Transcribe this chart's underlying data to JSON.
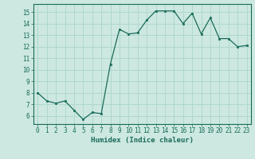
{
  "x": [
    0,
    1,
    2,
    3,
    4,
    5,
    6,
    7,
    8,
    9,
    10,
    11,
    12,
    13,
    14,
    15,
    16,
    17,
    18,
    19,
    20,
    21,
    22,
    23
  ],
  "y": [
    8.0,
    7.3,
    7.1,
    7.3,
    6.5,
    5.7,
    6.3,
    6.2,
    10.5,
    13.5,
    13.1,
    13.2,
    14.3,
    15.1,
    15.1,
    15.1,
    14.0,
    14.9,
    13.1,
    14.5,
    12.7,
    12.7,
    12.0,
    12.1
  ],
  "xlabel": "Humidex (Indice chaleur)",
  "xlim": [
    -0.5,
    23.5
  ],
  "ylim": [
    5.3,
    15.7
  ],
  "yticks": [
    6,
    7,
    8,
    9,
    10,
    11,
    12,
    13,
    14,
    15
  ],
  "xticks": [
    0,
    1,
    2,
    3,
    4,
    5,
    6,
    7,
    8,
    9,
    10,
    11,
    12,
    13,
    14,
    15,
    16,
    17,
    18,
    19,
    20,
    21,
    22,
    23
  ],
  "xtick_labels": [
    "0",
    "1",
    "2",
    "3",
    "4",
    "5",
    "6",
    "7",
    "8",
    "9",
    "10",
    "11",
    "12",
    "13",
    "14",
    "15",
    "16",
    "17",
    "18",
    "19",
    "20",
    "21",
    "22",
    "23"
  ],
  "line_color": "#1a6b5a",
  "marker_color": "#1a6b5a",
  "bg_color": "#cce8e0",
  "grid_color": "#b0d8cc",
  "axis_color": "#1a6b5a",
  "xlabel_color": "#1a6b5a",
  "tick_color": "#1a6b5a",
  "tick_fontsize": 5.5,
  "xlabel_fontsize": 6.5
}
